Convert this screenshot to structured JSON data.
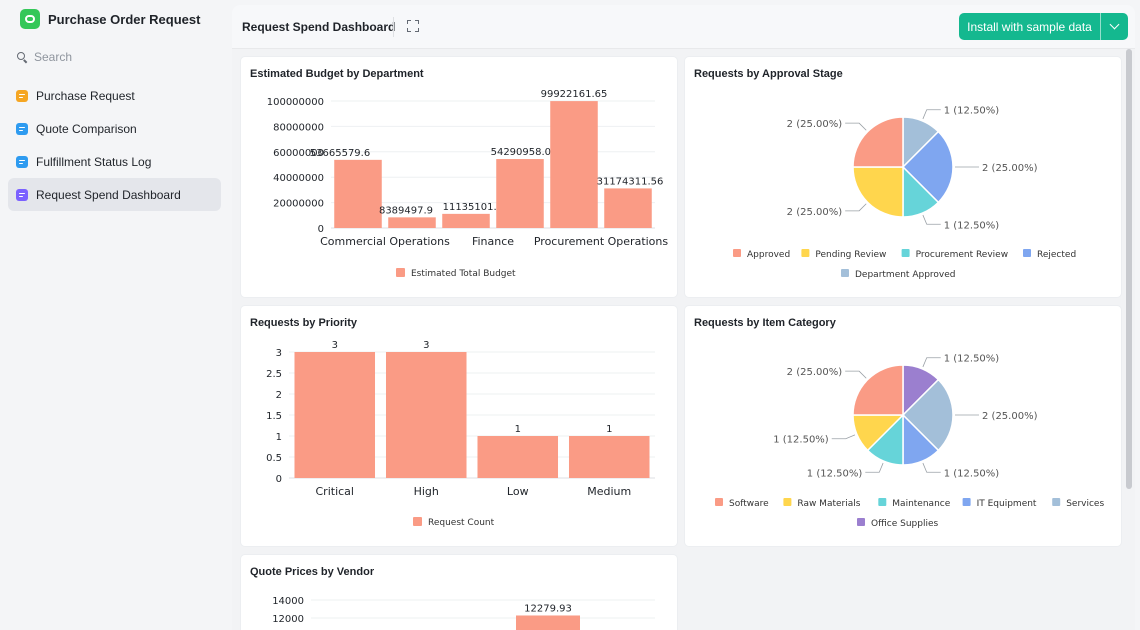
{
  "app": {
    "title": "Purchase Order Request",
    "logo_icon": "chat-bubble-icon",
    "logo_color": "#34c759"
  },
  "search": {
    "placeholder": "Search"
  },
  "sidebar": {
    "items": [
      {
        "label": "Purchase Request",
        "icon": "form-icon",
        "color": "#f5a623"
      },
      {
        "label": "Quote Comparison",
        "icon": "table-icon",
        "color": "#2e9bf0"
      },
      {
        "label": "Fulfillment Status Log",
        "icon": "table-icon",
        "color": "#2e9bf0"
      },
      {
        "label": "Request Spend Dashboard",
        "icon": "dashboard-icon",
        "color": "#7b61ff",
        "active": true
      }
    ]
  },
  "header": {
    "title": "Request Spend Dashboard",
    "install_label": "Install with sample data",
    "accent": "#14b88f"
  },
  "colors": {
    "bar": "#fa9b85"
  },
  "cards": {
    "budget": {
      "title": "Estimated Budget by Department"
    },
    "approval": {
      "title": "Requests by Approval Stage"
    },
    "priority": {
      "title": "Requests by Priority"
    },
    "category": {
      "title": "Requests by Item Category"
    },
    "vendor": {
      "title": "Quote Prices by Vendor"
    }
  },
  "chart_data": [
    {
      "type": "bar",
      "title": "Estimated Budget by Department",
      "categories": [
        "Commercial Operations",
        "",
        "Finance",
        "",
        "Procurement Operations",
        ""
      ],
      "series": [
        {
          "name": "Estimated Total Budget",
          "values": [
            53665579.6,
            8389497.9,
            11135101.59,
            54290958.02,
            99922161.65,
            31174311.56
          ]
        }
      ],
      "data_labels": [
        "53665579.6",
        "8389497.9",
        "11135101.59",
        "54290958.02",
        "99922161.65",
        "31174311.56"
      ],
      "y_ticks": [
        "0",
        "20000000",
        "40000000",
        "60000000",
        "80000000",
        "100000000"
      ],
      "ylim": [
        0,
        100000000
      ],
      "legend": "bottom"
    },
    {
      "type": "pie",
      "title": "Requests by Approval Stage",
      "slices": [
        {
          "name": "Department Approved",
          "value": 1,
          "label": "1 (12.50%)",
          "color": "#a3bfd9"
        },
        {
          "name": "Rejected",
          "value": 2,
          "label": "2 (25.00%)",
          "color": "#7fa6f0"
        },
        {
          "name": "Procurement Review",
          "value": 1,
          "label": "1 (12.50%)",
          "color": "#66d4d9"
        },
        {
          "name": "Pending Review",
          "value": 2,
          "label": "2 (25.00%)",
          "color": "#ffd64d"
        },
        {
          "name": "Approved",
          "value": 2,
          "label": "2 (25.00%)",
          "color": "#fa9b85"
        }
      ],
      "legend_order": [
        "Approved",
        "Pending Review",
        "Procurement Review",
        "Rejected",
        "Department Approved"
      ],
      "legend": "bottom"
    },
    {
      "type": "bar",
      "title": "Requests by Priority",
      "categories": [
        "Critical",
        "High",
        "Low",
        "Medium"
      ],
      "series": [
        {
          "name": "Request Count",
          "values": [
            3,
            3,
            1,
            1
          ]
        }
      ],
      "data_labels": [
        "3",
        "3",
        "1",
        "1"
      ],
      "y_ticks": [
        "0",
        "0.5",
        "1",
        "1.5",
        "2",
        "2.5",
        "3"
      ],
      "ylim": [
        0,
        3
      ],
      "legend": "bottom"
    },
    {
      "type": "pie",
      "title": "Requests by Item Category",
      "slices": [
        {
          "name": "Office Supplies",
          "value": 1,
          "label": "1 (12.50%)",
          "color": "#9b7fcf"
        },
        {
          "name": "Services",
          "value": 2,
          "label": "2 (25.00%)",
          "color": "#a3bfd9"
        },
        {
          "name": "IT Equipment",
          "value": 1,
          "label": "1 (12.50%)",
          "color": "#7fa6f0"
        },
        {
          "name": "Maintenance",
          "value": 1,
          "label": "1 (12.50%)",
          "color": "#66d4d9"
        },
        {
          "name": "Raw Materials",
          "value": 1,
          "label": "1 (12.50%)",
          "color": "#ffd64d"
        },
        {
          "name": "Software",
          "value": 2,
          "label": "2 (25.00%)",
          "color": "#fa9b85"
        }
      ],
      "legend_order": [
        "Software",
        "Raw Materials",
        "Maintenance",
        "IT Equipment",
        "Services",
        "Office Supplies"
      ],
      "legend": "bottom"
    },
    {
      "type": "bar",
      "title": "Quote Prices by Vendor",
      "categories": [
        "",
        "",
        ""
      ],
      "series": [
        {
          "values": [
            null,
            12279.93,
            null
          ]
        }
      ],
      "data_labels": [
        "",
        "12279.93",
        ""
      ],
      "y_ticks": [
        "12000",
        "14000"
      ],
      "ylim": [
        0,
        14000
      ]
    }
  ]
}
